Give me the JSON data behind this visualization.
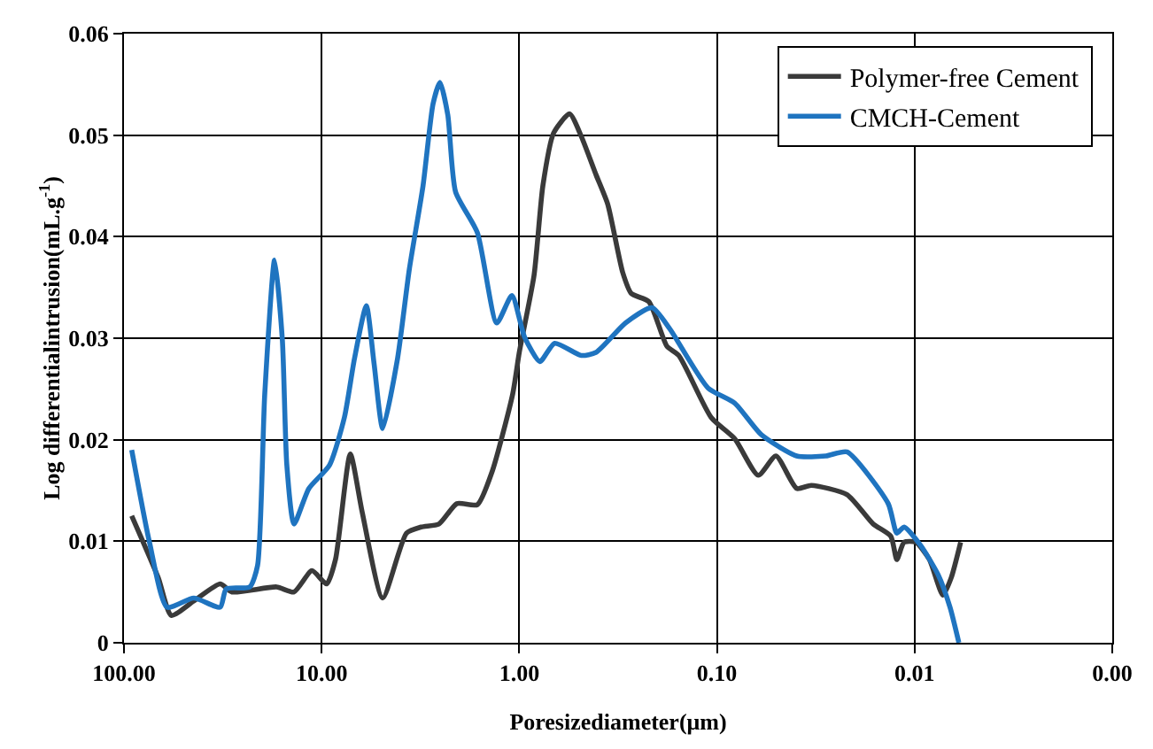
{
  "chart_data": {
    "type": "line",
    "xlabel": "Poresizediameter(μm)",
    "ylabel": "Log differentialintrusion(mL.g$^{-1}$)",
    "log": "x",
    "xlim": [
      100,
      0.001
    ],
    "xticks": [
      {
        "value": 100,
        "label": "100.00"
      },
      {
        "value": 10,
        "label": "10.00"
      },
      {
        "value": 1,
        "label": "1.00"
      },
      {
        "value": 0.1,
        "label": "0.10"
      },
      {
        "value": 0.01,
        "label": "0.01"
      },
      {
        "value": 0.001,
        "label": "0.00"
      }
    ],
    "ylim": [
      0,
      0.06
    ],
    "yticks": [
      0,
      0.01,
      0.02,
      0.03,
      0.04,
      0.05,
      0.06
    ],
    "grid": true,
    "legend": "top right",
    "line_style": "solid",
    "marker": "none",
    "series": [
      {
        "name": "Polymer-free Cement",
        "color": "#3a3a3a",
        "x": [
          91.4,
          67.1,
          57.6,
          44.4,
          32.6,
          28.4,
          16.9,
          13.8,
          11.2,
          9.43,
          8.51,
          7.16,
          6.24,
          4.91,
          3.72,
          3.14,
          2.55,
          2.07,
          1.63,
          1.37,
          1.08,
          1.0,
          0.842,
          0.76,
          0.671,
          0.557,
          0.486,
          0.409,
          0.357,
          0.3,
          0.271,
          0.221,
          0.179,
          0.156,
          0.107,
          0.0813,
          0.0618,
          0.0503,
          0.0395,
          0.0333,
          0.022,
          0.0162,
          0.0132,
          0.0123,
          0.0113,
          0.00986,
          0.00842,
          0.00719,
          0.00653,
          0.00585
        ],
        "values": [
          0.0125,
          0.0064,
          0.0027,
          0.0041,
          0.0058,
          0.005,
          0.0055,
          0.005,
          0.0071,
          0.0058,
          0.0082,
          0.0186,
          0.0129,
          0.0044,
          0.0108,
          0.0114,
          0.0117,
          0.0137,
          0.0136,
          0.0169,
          0.0245,
          0.0286,
          0.0362,
          0.045,
          0.0502,
          0.0521,
          0.0499,
          0.0461,
          0.0432,
          0.0365,
          0.0344,
          0.0336,
          0.0292,
          0.0283,
          0.0222,
          0.0201,
          0.0165,
          0.0184,
          0.0152,
          0.0155,
          0.0146,
          0.0117,
          0.0105,
          0.0082,
          0.0099,
          0.0099,
          0.0082,
          0.0047,
          0.0064,
          0.0099
        ]
      },
      {
        "name": "CMCH-Cement",
        "color": "#1f74c0",
        "x": [
          91.4,
          74.3,
          60.5,
          44.4,
          32.6,
          30.4,
          23.1,
          21.1,
          19.4,
          17.3,
          15.8,
          15.0,
          13.8,
          11.6,
          9.12,
          7.67,
          6.82,
          5.94,
          5.43,
          4.91,
          4.13,
          3.6,
          3.07,
          2.73,
          2.52,
          2.3,
          2.1,
          1.63,
          1.3,
          1.09,
          0.94,
          0.787,
          0.662,
          0.486,
          0.409,
          0.29,
          0.213,
          0.173,
          0.111,
          0.0813,
          0.0597,
          0.0395,
          0.0281,
          0.022,
          0.0136,
          0.0123,
          0.0113,
          0.00933,
          0.0076,
          0.00662,
          0.00597
        ],
        "values": [
          0.019,
          0.0099,
          0.0035,
          0.0044,
          0.0035,
          0.0053,
          0.0055,
          0.0076,
          0.0245,
          0.0377,
          0.0298,
          0.0175,
          0.0117,
          0.0152,
          0.0175,
          0.0222,
          0.028,
          0.0332,
          0.0275,
          0.0211,
          0.028,
          0.0368,
          0.045,
          0.0531,
          0.0552,
          0.052,
          0.0444,
          0.0404,
          0.0315,
          0.0342,
          0.0301,
          0.0277,
          0.0295,
          0.0283,
          0.0286,
          0.0315,
          0.033,
          0.0309,
          0.0251,
          0.0236,
          0.0205,
          0.0184,
          0.0184,
          0.0188,
          0.0137,
          0.0108,
          0.0114,
          0.0096,
          0.0067,
          0.0035,
          0
        ]
      }
    ]
  }
}
